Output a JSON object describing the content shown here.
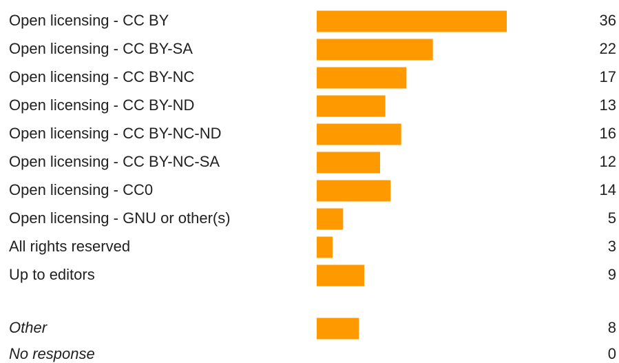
{
  "chart_data": [
    {
      "type": "bar",
      "categories": [
        "Open licensing - CC BY",
        "Open licensing - CC BY-SA",
        "Open licensing - CC BY-NC",
        "Open licensing - CC BY-ND",
        "Open licensing - CC BY-NC-ND",
        "Open licensing - CC BY-NC-SA",
        "Open licensing - CC0",
        "Open licensing - GNU or other(s)",
        "All rights reserved",
        "Up to editors"
      ],
      "values": [
        36,
        22,
        17,
        13,
        16,
        12,
        14,
        5,
        3,
        9
      ],
      "color": "#ff9900"
    },
    {
      "type": "bar",
      "categories": [
        "Other",
        "No response"
      ],
      "values": [
        8,
        0
      ],
      "color": "#ff9900"
    }
  ]
}
